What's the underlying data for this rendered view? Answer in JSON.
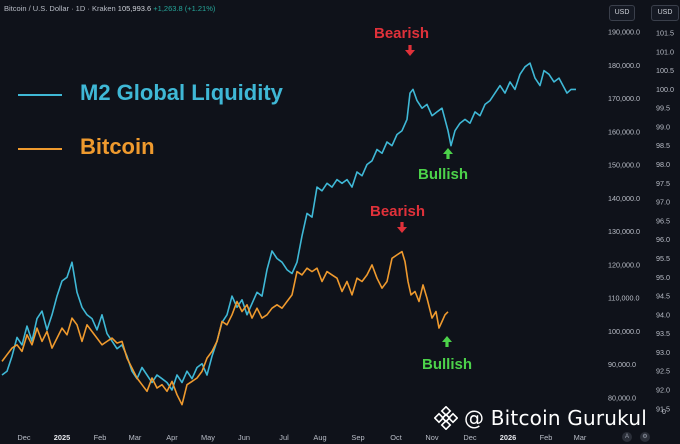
{
  "header": {
    "symbol": "Bitcoin / U.S. Dollar · 1D · Kraken",
    "price": "105,993.6",
    "change": "+1,263.8 (+1.21%)"
  },
  "badges": {
    "left": "USD",
    "right": "USD"
  },
  "watermark": "@ Bitcoin Gurukul",
  "corner_letters": {
    "auto": "A",
    "log": "⚙"
  },
  "annotations": {
    "top_bearish": "Bearish",
    "top_bullish": "Bullish",
    "bottom_bearish": "Bearish",
    "bottom_bullish": "Bullish"
  },
  "colors": {
    "m2": "#3fb8d6",
    "btc": "#ef9a2e",
    "bearish": "#e0313a",
    "bullish": "#4cd24a",
    "background": "#0f121a"
  },
  "chart_data": {
    "type": "line",
    "title": "",
    "xlabel": "",
    "ylabel": "",
    "x_ticks": [
      "Dec",
      "2025",
      "Feb",
      "Mar",
      "Apr",
      "May",
      "Jun",
      "Jul",
      "Aug",
      "Sep",
      "Oct",
      "Nov",
      "Dec",
      "2026",
      "Feb",
      "Mar"
    ],
    "y_ticks_left_scale": [
      "190,000.0",
      "180,000.0",
      "170,000.0",
      "160,000.0",
      "150,000.0",
      "140,000.0",
      "130,000.0",
      "120,000.0",
      "110,000.0",
      "100,000.0",
      "90,000.0",
      "80,000.0"
    ],
    "y_ticks_right_scale": [
      "101.5",
      "101.0",
      "100.5",
      "100.0",
      "99.5",
      "99.0",
      "98.5",
      "98.0",
      "97.5",
      "97.0",
      "96.5",
      "96.0",
      "95.5",
      "95.0",
      "94.5",
      "94.0",
      "93.5",
      "93.0",
      "92.5",
      "92.0",
      "91.5"
    ],
    "right_axis_bottom_label": "0",
    "series": [
      {
        "name": "M2 Global Liquidity",
        "axis": "right",
        "values": [
          {
            "x": 0,
            "y": 92.4
          },
          {
            "x": 5,
            "y": 92.5
          },
          {
            "x": 10,
            "y": 92.9
          },
          {
            "x": 15,
            "y": 93.4
          },
          {
            "x": 20,
            "y": 93.2
          },
          {
            "x": 25,
            "y": 93.7
          },
          {
            "x": 30,
            "y": 93.3
          },
          {
            "x": 35,
            "y": 93.9
          },
          {
            "x": 40,
            "y": 94.1
          },
          {
            "x": 45,
            "y": 93.6
          },
          {
            "x": 50,
            "y": 94.0
          },
          {
            "x": 55,
            "y": 94.5
          },
          {
            "x": 60,
            "y": 94.9
          },
          {
            "x": 65,
            "y": 95.0
          },
          {
            "x": 70,
            "y": 95.4
          },
          {
            "x": 75,
            "y": 94.6
          },
          {
            "x": 80,
            "y": 94.2
          },
          {
            "x": 85,
            "y": 94.0
          },
          {
            "x": 90,
            "y": 93.9
          },
          {
            "x": 95,
            "y": 93.6
          },
          {
            "x": 100,
            "y": 94.0
          },
          {
            "x": 105,
            "y": 93.5
          },
          {
            "x": 110,
            "y": 93.3
          },
          {
            "x": 115,
            "y": 93.1
          },
          {
            "x": 120,
            "y": 93.2
          },
          {
            "x": 125,
            "y": 92.9
          },
          {
            "x": 130,
            "y": 92.5
          },
          {
            "x": 135,
            "y": 92.3
          },
          {
            "x": 140,
            "y": 92.6
          },
          {
            "x": 145,
            "y": 92.4
          },
          {
            "x": 150,
            "y": 92.2
          },
          {
            "x": 155,
            "y": 92.4
          },
          {
            "x": 160,
            "y": 92.3
          },
          {
            "x": 165,
            "y": 92.2
          },
          {
            "x": 170,
            "y": 92.0
          },
          {
            "x": 175,
            "y": 92.4
          },
          {
            "x": 180,
            "y": 92.2
          },
          {
            "x": 185,
            "y": 92.5
          },
          {
            "x": 190,
            "y": 92.3
          },
          {
            "x": 195,
            "y": 92.6
          },
          {
            "x": 200,
            "y": 92.7
          },
          {
            "x": 205,
            "y": 92.4
          },
          {
            "x": 210,
            "y": 92.9
          },
          {
            "x": 215,
            "y": 93.3
          },
          {
            "x": 220,
            "y": 93.8
          },
          {
            "x": 225,
            "y": 94.0
          },
          {
            "x": 230,
            "y": 94.5
          },
          {
            "x": 235,
            "y": 94.2
          },
          {
            "x": 240,
            "y": 94.4
          },
          {
            "x": 245,
            "y": 94.0
          },
          {
            "x": 250,
            "y": 94.3
          },
          {
            "x": 255,
            "y": 94.6
          },
          {
            "x": 260,
            "y": 94.5
          },
          {
            "x": 265,
            "y": 95.2
          },
          {
            "x": 270,
            "y": 95.7
          },
          {
            "x": 275,
            "y": 95.5
          },
          {
            "x": 280,
            "y": 95.4
          },
          {
            "x": 285,
            "y": 95.2
          },
          {
            "x": 290,
            "y": 95.1
          },
          {
            "x": 295,
            "y": 95.4
          },
          {
            "x": 300,
            "y": 96.1
          },
          {
            "x": 305,
            "y": 96.7
          },
          {
            "x": 310,
            "y": 96.6
          },
          {
            "x": 315,
            "y": 97.4
          },
          {
            "x": 320,
            "y": 97.3
          },
          {
            "x": 325,
            "y": 97.5
          },
          {
            "x": 330,
            "y": 97.4
          },
          {
            "x": 335,
            "y": 97.6
          },
          {
            "x": 340,
            "y": 97.5
          },
          {
            "x": 345,
            "y": 97.6
          },
          {
            "x": 350,
            "y": 97.4
          },
          {
            "x": 355,
            "y": 97.8
          },
          {
            "x": 360,
            "y": 97.7
          },
          {
            "x": 365,
            "y": 98.0
          },
          {
            "x": 370,
            "y": 98.1
          },
          {
            "x": 375,
            "y": 98.4
          },
          {
            "x": 380,
            "y": 98.3
          },
          {
            "x": 385,
            "y": 98.6
          },
          {
            "x": 390,
            "y": 98.5
          },
          {
            "x": 395,
            "y": 98.8
          },
          {
            "x": 400,
            "y": 98.9
          },
          {
            "x": 405,
            "y": 99.2
          },
          {
            "x": 408,
            "y": 99.9
          },
          {
            "x": 411,
            "y": 100.0
          },
          {
            "x": 415,
            "y": 99.7
          },
          {
            "x": 420,
            "y": 99.5
          },
          {
            "x": 425,
            "y": 99.6
          },
          {
            "x": 430,
            "y": 99.3
          },
          {
            "x": 435,
            "y": 99.4
          },
          {
            "x": 440,
            "y": 99.5
          },
          {
            "x": 443,
            "y": 99.2
          },
          {
            "x": 446,
            "y": 98.9
          },
          {
            "x": 449,
            "y": 98.5
          },
          {
            "x": 453,
            "y": 98.9
          },
          {
            "x": 458,
            "y": 99.1
          },
          {
            "x": 463,
            "y": 99.2
          },
          {
            "x": 468,
            "y": 99.1
          },
          {
            "x": 473,
            "y": 99.4
          },
          {
            "x": 478,
            "y": 99.3
          },
          {
            "x": 483,
            "y": 99.6
          },
          {
            "x": 488,
            "y": 99.7
          },
          {
            "x": 493,
            "y": 99.9
          },
          {
            "x": 498,
            "y": 100.1
          },
          {
            "x": 503,
            "y": 99.9
          },
          {
            "x": 508,
            "y": 100.2
          },
          {
            "x": 513,
            "y": 100.0
          },
          {
            "x": 518,
            "y": 100.4
          },
          {
            "x": 523,
            "y": 100.6
          },
          {
            "x": 528,
            "y": 100.7
          },
          {
            "x": 533,
            "y": 100.3
          },
          {
            "x": 538,
            "y": 100.1
          },
          {
            "x": 542,
            "y": 100.5
          },
          {
            "x": 547,
            "y": 100.4
          },
          {
            "x": 552,
            "y": 100.2
          },
          {
            "x": 557,
            "y": 100.3
          },
          {
            "x": 561,
            "y": 100.1
          },
          {
            "x": 565,
            "y": 99.9
          },
          {
            "x": 569,
            "y": 100.0
          },
          {
            "x": 574,
            "y": 100.0
          }
        ]
      },
      {
        "name": "Bitcoin",
        "axis": "left",
        "values": [
          {
            "x": 0,
            "y": 91000
          },
          {
            "x": 5,
            "y": 93000
          },
          {
            "x": 10,
            "y": 95000
          },
          {
            "x": 15,
            "y": 96000
          },
          {
            "x": 20,
            "y": 94000
          },
          {
            "x": 25,
            "y": 99000
          },
          {
            "x": 30,
            "y": 96000
          },
          {
            "x": 35,
            "y": 101000
          },
          {
            "x": 40,
            "y": 97000
          },
          {
            "x": 45,
            "y": 100000
          },
          {
            "x": 50,
            "y": 95000
          },
          {
            "x": 55,
            "y": 98000
          },
          {
            "x": 60,
            "y": 101000
          },
          {
            "x": 65,
            "y": 99000
          },
          {
            "x": 70,
            "y": 104000
          },
          {
            "x": 75,
            "y": 102000
          },
          {
            "x": 80,
            "y": 97000
          },
          {
            "x": 85,
            "y": 102000
          },
          {
            "x": 90,
            "y": 100000
          },
          {
            "x": 95,
            "y": 98000
          },
          {
            "x": 100,
            "y": 96000
          },
          {
            "x": 105,
            "y": 97000
          },
          {
            "x": 110,
            "y": 98000
          },
          {
            "x": 115,
            "y": 96500
          },
          {
            "x": 120,
            "y": 97000
          },
          {
            "x": 125,
            "y": 92000
          },
          {
            "x": 130,
            "y": 89000
          },
          {
            "x": 135,
            "y": 86000
          },
          {
            "x": 140,
            "y": 84000
          },
          {
            "x": 145,
            "y": 82000
          },
          {
            "x": 150,
            "y": 86000
          },
          {
            "x": 155,
            "y": 83000
          },
          {
            "x": 160,
            "y": 84000
          },
          {
            "x": 165,
            "y": 82000
          },
          {
            "x": 170,
            "y": 85000
          },
          {
            "x": 175,
            "y": 81000
          },
          {
            "x": 180,
            "y": 78000
          },
          {
            "x": 185,
            "y": 84000
          },
          {
            "x": 190,
            "y": 85000
          },
          {
            "x": 195,
            "y": 86000
          },
          {
            "x": 200,
            "y": 88000
          },
          {
            "x": 205,
            "y": 92000
          },
          {
            "x": 210,
            "y": 94000
          },
          {
            "x": 215,
            "y": 97000
          },
          {
            "x": 220,
            "y": 103000
          },
          {
            "x": 225,
            "y": 102000
          },
          {
            "x": 230,
            "y": 105000
          },
          {
            "x": 235,
            "y": 109000
          },
          {
            "x": 240,
            "y": 106000
          },
          {
            "x": 245,
            "y": 108000
          },
          {
            "x": 250,
            "y": 104000
          },
          {
            "x": 255,
            "y": 107000
          },
          {
            "x": 260,
            "y": 104000
          },
          {
            "x": 265,
            "y": 105000
          },
          {
            "x": 270,
            "y": 107000
          },
          {
            "x": 275,
            "y": 108000
          },
          {
            "x": 280,
            "y": 107000
          },
          {
            "x": 285,
            "y": 109000
          },
          {
            "x": 290,
            "y": 111000
          },
          {
            "x": 295,
            "y": 118000
          },
          {
            "x": 300,
            "y": 117000
          },
          {
            "x": 305,
            "y": 119000
          },
          {
            "x": 310,
            "y": 118000
          },
          {
            "x": 315,
            "y": 119000
          },
          {
            "x": 320,
            "y": 115000
          },
          {
            "x": 325,
            "y": 118000
          },
          {
            "x": 330,
            "y": 117000
          },
          {
            "x": 335,
            "y": 116000
          },
          {
            "x": 340,
            "y": 112000
          },
          {
            "x": 345,
            "y": 115000
          },
          {
            "x": 350,
            "y": 111000
          },
          {
            "x": 355,
            "y": 116000
          },
          {
            "x": 360,
            "y": 115000
          },
          {
            "x": 365,
            "y": 117000
          },
          {
            "x": 370,
            "y": 120000
          },
          {
            "x": 375,
            "y": 116000
          },
          {
            "x": 380,
            "y": 113000
          },
          {
            "x": 385,
            "y": 115000
          },
          {
            "x": 390,
            "y": 122000
          },
          {
            "x": 395,
            "y": 123000
          },
          {
            "x": 400,
            "y": 124000
          },
          {
            "x": 403,
            "y": 121000
          },
          {
            "x": 406,
            "y": 115000
          },
          {
            "x": 409,
            "y": 111000
          },
          {
            "x": 413,
            "y": 112000
          },
          {
            "x": 417,
            "y": 109000
          },
          {
            "x": 421,
            "y": 114000
          },
          {
            "x": 425,
            "y": 110000
          },
          {
            "x": 430,
            "y": 104000
          },
          {
            "x": 434,
            "y": 106000
          },
          {
            "x": 437,
            "y": 101000
          },
          {
            "x": 440,
            "y": 103000
          },
          {
            "x": 443,
            "y": 105000
          },
          {
            "x": 446,
            "y": 105900
          }
        ]
      }
    ]
  }
}
